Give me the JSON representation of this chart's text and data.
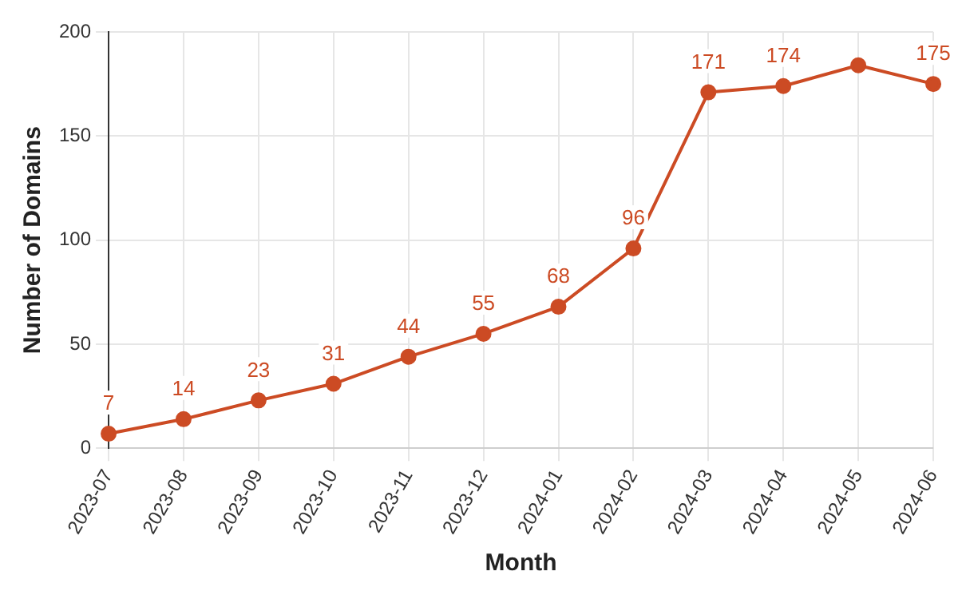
{
  "chart_data": {
    "type": "line",
    "xlabel": "Month",
    "ylabel": "Number of Domains",
    "categories": [
      "2023-07",
      "2023-08",
      "2023-09",
      "2023-10",
      "2023-11",
      "2023-12",
      "2024-01",
      "2024-02",
      "2024-03",
      "2024-04",
      "2024-05",
      "2024-06"
    ],
    "series": [
      {
        "color": "#cc4b24",
        "values": [
          7,
          14,
          23,
          31,
          44,
          55,
          68,
          96,
          171,
          174,
          184,
          175
        ],
        "value_labels": [
          "7",
          "14",
          "23",
          "31",
          "44",
          "55",
          "68",
          "96",
          "171",
          "174",
          null,
          "175"
        ]
      }
    ],
    "ylim": [
      0,
      200
    ],
    "yticks": [
      0,
      50,
      100,
      150,
      200
    ],
    "grid": true,
    "legend": false,
    "marker": "circle",
    "line_style": "solid"
  }
}
